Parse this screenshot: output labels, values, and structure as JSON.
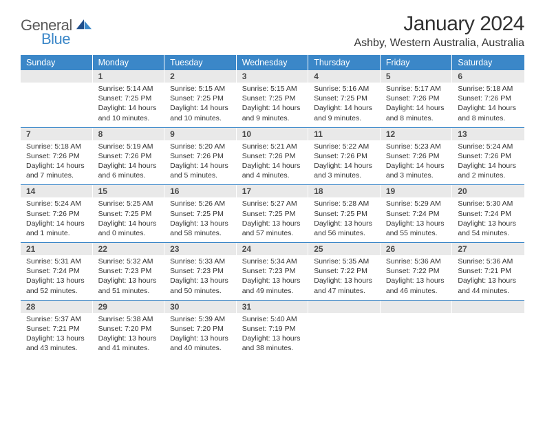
{
  "logo": {
    "text_general": "General",
    "text_blue": "Blue",
    "accent_color": "#3b87c8",
    "text_color": "#5a5a5a"
  },
  "title": "January 2024",
  "location": "Ashby, Western Australia, Australia",
  "colors": {
    "header_bg": "#3b87c8",
    "header_text": "#ffffff",
    "daynum_bg": "#e9e9e9",
    "daynum_text": "#4a4a4a",
    "body_text": "#333333",
    "separator": "#3b87c8",
    "page_bg": "#ffffff"
  },
  "typography": {
    "title_fontsize": 30,
    "location_fontsize": 16,
    "header_fontsize": 12.5,
    "daynum_fontsize": 12,
    "detail_fontsize": 10.5
  },
  "day_headers": [
    "Sunday",
    "Monday",
    "Tuesday",
    "Wednesday",
    "Thursday",
    "Friday",
    "Saturday"
  ],
  "weeks": [
    [
      {
        "num": "",
        "sunrise": "",
        "sunset": "",
        "daylight": ""
      },
      {
        "num": "1",
        "sunrise": "Sunrise: 5:14 AM",
        "sunset": "Sunset: 7:25 PM",
        "daylight": "Daylight: 14 hours and 10 minutes."
      },
      {
        "num": "2",
        "sunrise": "Sunrise: 5:15 AM",
        "sunset": "Sunset: 7:25 PM",
        "daylight": "Daylight: 14 hours and 10 minutes."
      },
      {
        "num": "3",
        "sunrise": "Sunrise: 5:15 AM",
        "sunset": "Sunset: 7:25 PM",
        "daylight": "Daylight: 14 hours and 9 minutes."
      },
      {
        "num": "4",
        "sunrise": "Sunrise: 5:16 AM",
        "sunset": "Sunset: 7:25 PM",
        "daylight": "Daylight: 14 hours and 9 minutes."
      },
      {
        "num": "5",
        "sunrise": "Sunrise: 5:17 AM",
        "sunset": "Sunset: 7:26 PM",
        "daylight": "Daylight: 14 hours and 8 minutes."
      },
      {
        "num": "6",
        "sunrise": "Sunrise: 5:18 AM",
        "sunset": "Sunset: 7:26 PM",
        "daylight": "Daylight: 14 hours and 8 minutes."
      }
    ],
    [
      {
        "num": "7",
        "sunrise": "Sunrise: 5:18 AM",
        "sunset": "Sunset: 7:26 PM",
        "daylight": "Daylight: 14 hours and 7 minutes."
      },
      {
        "num": "8",
        "sunrise": "Sunrise: 5:19 AM",
        "sunset": "Sunset: 7:26 PM",
        "daylight": "Daylight: 14 hours and 6 minutes."
      },
      {
        "num": "9",
        "sunrise": "Sunrise: 5:20 AM",
        "sunset": "Sunset: 7:26 PM",
        "daylight": "Daylight: 14 hours and 5 minutes."
      },
      {
        "num": "10",
        "sunrise": "Sunrise: 5:21 AM",
        "sunset": "Sunset: 7:26 PM",
        "daylight": "Daylight: 14 hours and 4 minutes."
      },
      {
        "num": "11",
        "sunrise": "Sunrise: 5:22 AM",
        "sunset": "Sunset: 7:26 PM",
        "daylight": "Daylight: 14 hours and 3 minutes."
      },
      {
        "num": "12",
        "sunrise": "Sunrise: 5:23 AM",
        "sunset": "Sunset: 7:26 PM",
        "daylight": "Daylight: 14 hours and 3 minutes."
      },
      {
        "num": "13",
        "sunrise": "Sunrise: 5:24 AM",
        "sunset": "Sunset: 7:26 PM",
        "daylight": "Daylight: 14 hours and 2 minutes."
      }
    ],
    [
      {
        "num": "14",
        "sunrise": "Sunrise: 5:24 AM",
        "sunset": "Sunset: 7:26 PM",
        "daylight": "Daylight: 14 hours and 1 minute."
      },
      {
        "num": "15",
        "sunrise": "Sunrise: 5:25 AM",
        "sunset": "Sunset: 7:25 PM",
        "daylight": "Daylight: 14 hours and 0 minutes."
      },
      {
        "num": "16",
        "sunrise": "Sunrise: 5:26 AM",
        "sunset": "Sunset: 7:25 PM",
        "daylight": "Daylight: 13 hours and 58 minutes."
      },
      {
        "num": "17",
        "sunrise": "Sunrise: 5:27 AM",
        "sunset": "Sunset: 7:25 PM",
        "daylight": "Daylight: 13 hours and 57 minutes."
      },
      {
        "num": "18",
        "sunrise": "Sunrise: 5:28 AM",
        "sunset": "Sunset: 7:25 PM",
        "daylight": "Daylight: 13 hours and 56 minutes."
      },
      {
        "num": "19",
        "sunrise": "Sunrise: 5:29 AM",
        "sunset": "Sunset: 7:24 PM",
        "daylight": "Daylight: 13 hours and 55 minutes."
      },
      {
        "num": "20",
        "sunrise": "Sunrise: 5:30 AM",
        "sunset": "Sunset: 7:24 PM",
        "daylight": "Daylight: 13 hours and 54 minutes."
      }
    ],
    [
      {
        "num": "21",
        "sunrise": "Sunrise: 5:31 AM",
        "sunset": "Sunset: 7:24 PM",
        "daylight": "Daylight: 13 hours and 52 minutes."
      },
      {
        "num": "22",
        "sunrise": "Sunrise: 5:32 AM",
        "sunset": "Sunset: 7:23 PM",
        "daylight": "Daylight: 13 hours and 51 minutes."
      },
      {
        "num": "23",
        "sunrise": "Sunrise: 5:33 AM",
        "sunset": "Sunset: 7:23 PM",
        "daylight": "Daylight: 13 hours and 50 minutes."
      },
      {
        "num": "24",
        "sunrise": "Sunrise: 5:34 AM",
        "sunset": "Sunset: 7:23 PM",
        "daylight": "Daylight: 13 hours and 49 minutes."
      },
      {
        "num": "25",
        "sunrise": "Sunrise: 5:35 AM",
        "sunset": "Sunset: 7:22 PM",
        "daylight": "Daylight: 13 hours and 47 minutes."
      },
      {
        "num": "26",
        "sunrise": "Sunrise: 5:36 AM",
        "sunset": "Sunset: 7:22 PM",
        "daylight": "Daylight: 13 hours and 46 minutes."
      },
      {
        "num": "27",
        "sunrise": "Sunrise: 5:36 AM",
        "sunset": "Sunset: 7:21 PM",
        "daylight": "Daylight: 13 hours and 44 minutes."
      }
    ],
    [
      {
        "num": "28",
        "sunrise": "Sunrise: 5:37 AM",
        "sunset": "Sunset: 7:21 PM",
        "daylight": "Daylight: 13 hours and 43 minutes."
      },
      {
        "num": "29",
        "sunrise": "Sunrise: 5:38 AM",
        "sunset": "Sunset: 7:20 PM",
        "daylight": "Daylight: 13 hours and 41 minutes."
      },
      {
        "num": "30",
        "sunrise": "Sunrise: 5:39 AM",
        "sunset": "Sunset: 7:20 PM",
        "daylight": "Daylight: 13 hours and 40 minutes."
      },
      {
        "num": "31",
        "sunrise": "Sunrise: 5:40 AM",
        "sunset": "Sunset: 7:19 PM",
        "daylight": "Daylight: 13 hours and 38 minutes."
      },
      {
        "num": "",
        "sunrise": "",
        "sunset": "",
        "daylight": ""
      },
      {
        "num": "",
        "sunrise": "",
        "sunset": "",
        "daylight": ""
      },
      {
        "num": "",
        "sunrise": "",
        "sunset": "",
        "daylight": ""
      }
    ]
  ]
}
